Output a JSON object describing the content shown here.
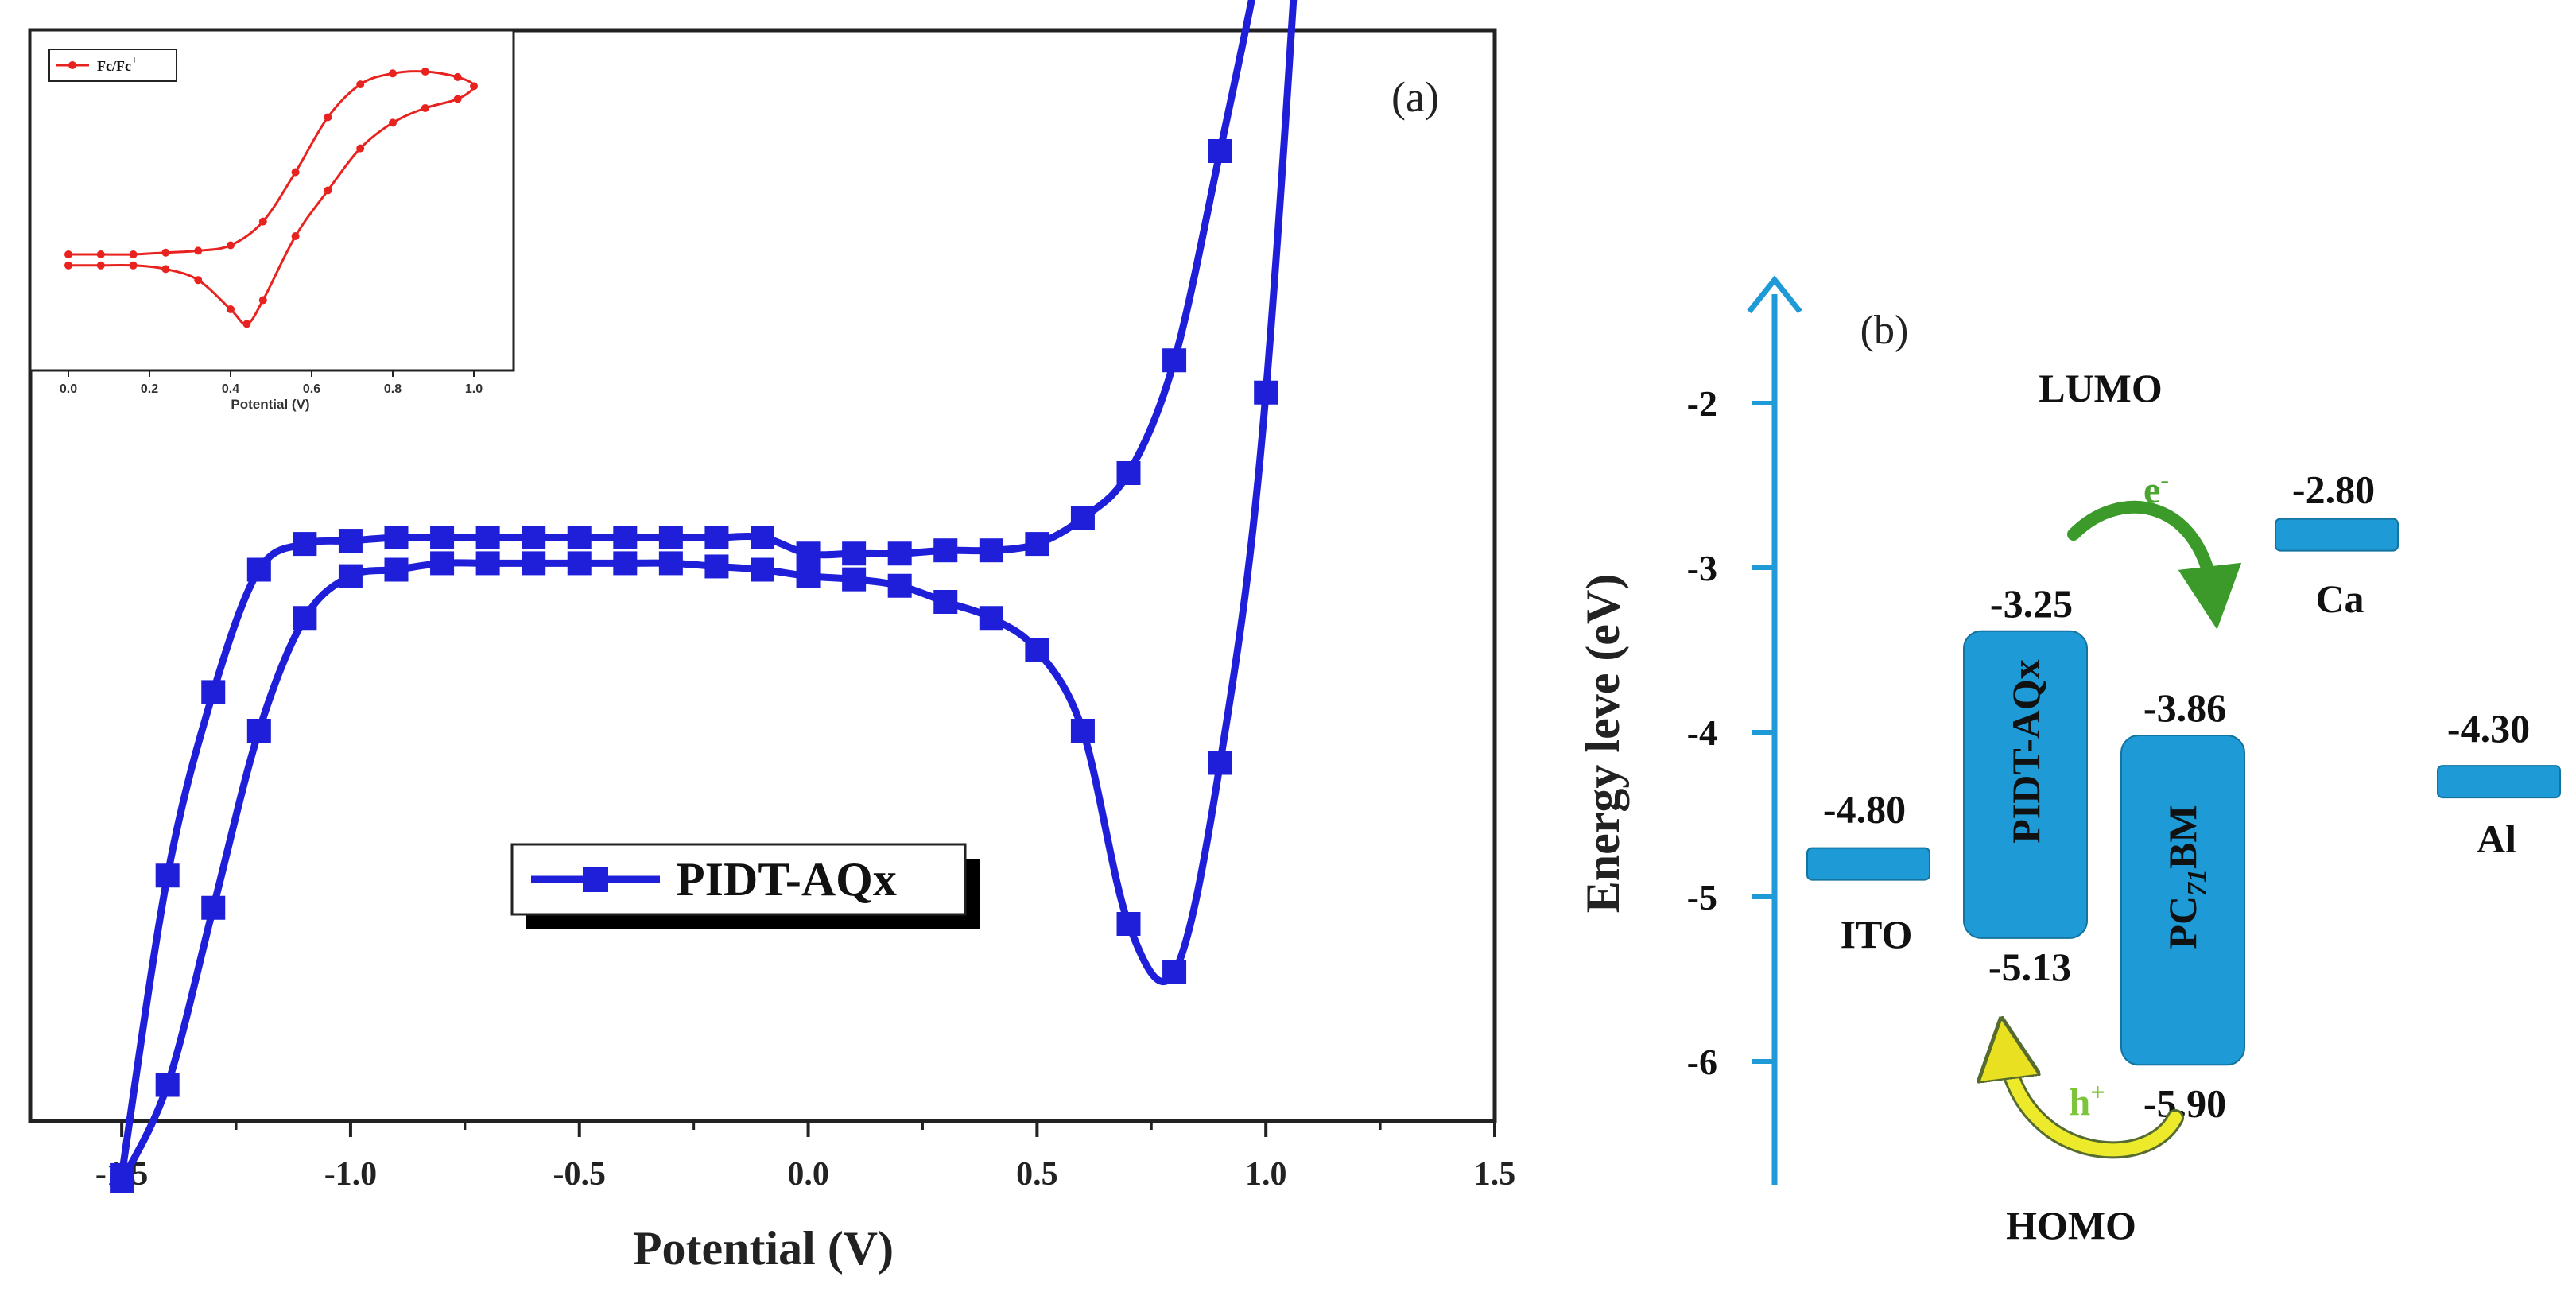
{
  "chart_data": [
    {
      "type": "line",
      "panel_label": "(a)",
      "xlabel": "Potential (V)",
      "xlim": [
        -1.7,
        1.5
      ],
      "xticks": [
        "-1.5",
        "-1.0",
        "-0.5",
        "0.0",
        "0.5",
        "1.0",
        "1.5"
      ],
      "y_units": "arbitrary",
      "series": [
        {
          "name": "PIDT-AQx",
          "color": "#1f1fd9",
          "marker": "square",
          "x": [
            -1.5,
            -1.4,
            -1.3,
            -1.2,
            -1.1,
            -1.0,
            -0.9,
            -0.8,
            -0.7,
            -0.6,
            -0.5,
            -0.4,
            -0.3,
            -0.2,
            -0.1,
            0.0,
            0.1,
            0.2,
            0.3,
            0.4,
            0.5,
            0.6,
            0.7,
            0.8,
            0.9,
            1.0,
            1.1,
            1.0,
            0.9,
            0.8,
            0.7,
            0.6,
            0.5,
            0.4,
            0.3,
            0.2,
            0.1,
            0.0,
            -0.1,
            -0.2,
            -0.3,
            -0.4,
            -0.5,
            -0.6,
            -0.7,
            -0.8,
            -0.9,
            -1.0,
            -1.1,
            -1.2,
            -1.3,
            -1.4,
            -1.5
          ],
          "y": [
            -2.0,
            -1.7,
            -1.15,
            -0.6,
            -0.25,
            -0.12,
            -0.1,
            -0.08,
            -0.08,
            -0.08,
            -0.08,
            -0.08,
            -0.08,
            -0.09,
            -0.1,
            -0.12,
            -0.13,
            -0.15,
            -0.2,
            -0.25,
            -0.35,
            -0.6,
            -1.2,
            -1.35,
            -0.7,
            0.45,
            2.75,
            1.9,
            1.2,
            0.55,
            0.2,
            0.06,
            -0.02,
            -0.04,
            -0.04,
            -0.05,
            -0.05,
            -0.05,
            0.0,
            0.0,
            0.0,
            0.0,
            0.0,
            0.0,
            0.0,
            0.0,
            0.0,
            -0.01,
            -0.02,
            -0.1,
            -0.48,
            -1.05,
            -1.98
          ]
        }
      ],
      "inset": {
        "type": "line",
        "xlabel": "Potential (V)",
        "xticks": [
          "0.0",
          "0.2",
          "0.4",
          "0.6",
          "0.8",
          "1.0"
        ],
        "series": [
          {
            "name": "Fc/Fc",
            "name_superscript": "+",
            "color": "#e8231f",
            "marker": "circle",
            "x": [
              0.0,
              0.08,
              0.16,
              0.24,
              0.32,
              0.4,
              0.48,
              0.56,
              0.64,
              0.72,
              0.8,
              0.88,
              0.96,
              1.0,
              0.96,
              0.88,
              0.8,
              0.72,
              0.64,
              0.56,
              0.48,
              0.44,
              0.4,
              0.32,
              0.24,
              0.16,
              0.08,
              0.0
            ],
            "y": [
              0.0,
              0.0,
              0.0,
              0.01,
              0.02,
              0.05,
              0.18,
              0.45,
              0.75,
              0.93,
              0.99,
              1.0,
              0.97,
              0.92,
              0.85,
              0.8,
              0.72,
              0.58,
              0.35,
              0.1,
              -0.25,
              -0.38,
              -0.3,
              -0.14,
              -0.08,
              -0.06,
              -0.06,
              -0.06
            ]
          }
        ]
      }
    },
    {
      "type": "diagram",
      "panel_label": "(b)",
      "ylabel": "Energy leve (eV)",
      "ylim": [
        -6.7,
        -1.3
      ],
      "yticks": [
        "-2",
        "-3",
        "-4",
        "-5",
        "-6"
      ],
      "lumo_label": "LUMO",
      "homo_label": "HOMO",
      "electron_label": "e",
      "electron_superscript": "-",
      "hole_label": "h",
      "hole_superscript": "+",
      "bar_color": "#1e9ad6",
      "levels": [
        {
          "name": "ITO",
          "value": -4.8,
          "value_label": "-4.80"
        },
        {
          "name": "PIDT-AQx",
          "lumo": -3.25,
          "homo": -5.13,
          "lumo_label": "-3.25",
          "homo_label": "-5.13"
        },
        {
          "name_prefix": "PC",
          "name_sub": "71",
          "name_suffix": "BM",
          "lumo": -3.86,
          "homo": -5.9,
          "lumo_label": "-3.86",
          "homo_label": "-5.90"
        },
        {
          "name": "Ca",
          "value": -2.8,
          "value_label": "-2.80"
        },
        {
          "name": "Al",
          "value": -4.3,
          "value_label": "-4.30"
        }
      ]
    }
  ]
}
